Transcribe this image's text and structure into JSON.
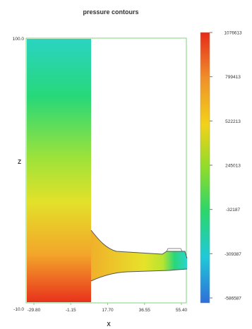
{
  "chart_data": {
    "type": "heatmap",
    "title": "pressure contours",
    "xlabel": "X",
    "ylabel": "Z",
    "xlim": [
      -29.8,
      55.4
    ],
    "ylim": [
      -10.0,
      100.0
    ],
    "x_ticks": [
      "-29.80",
      "-1.15",
      "17.70",
      "36.55",
      "55.40"
    ],
    "y_ticks": [
      "100.0",
      "Z",
      "-10.0"
    ],
    "colorbar": {
      "ticks": [
        "1076613",
        "799413",
        "522213",
        "245013",
        "-32187",
        "-309387",
        "-586587"
      ],
      "min": -586587,
      "max": 1076613,
      "colors": [
        "#2e6fd9",
        "#20c9d8",
        "#2bd66a",
        "#c6e21c",
        "#f2d21a",
        "#f0902a",
        "#e52a1a"
      ]
    },
    "grid": false,
    "legend": "right",
    "colors": {
      "frame": "#7fd67f",
      "domain_outline": "#555555"
    }
  }
}
